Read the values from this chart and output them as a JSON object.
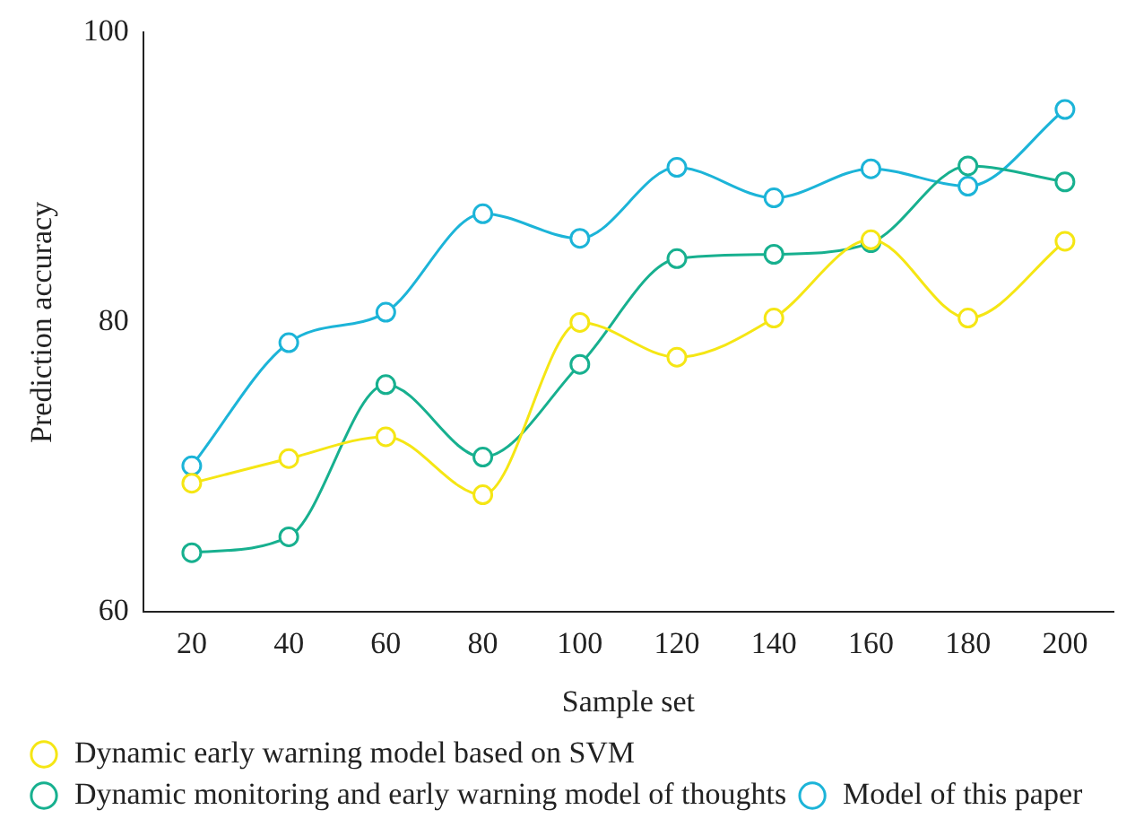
{
  "chart_data": {
    "type": "line",
    "xlabel": "Sample set",
    "ylabel": "Prediction accuracy",
    "categories": [
      "20",
      "40",
      "60",
      "80",
      "100",
      "120",
      "140",
      "160",
      "180",
      "200"
    ],
    "series": [
      {
        "name": "Dynamic early warning model based on SVM",
        "color": "#f5e614",
        "values": [
          68.9,
          70.6,
          72.1,
          68.1,
          80.0,
          77.6,
          80.3,
          85.7,
          80.3,
          85.6
        ]
      },
      {
        "name": "Dynamic monitoring and early warning model of thoughts",
        "color": "#17b08f",
        "values": [
          64.1,
          65.2,
          75.7,
          70.7,
          77.1,
          84.4,
          84.7,
          85.5,
          90.8,
          89.7
        ]
      },
      {
        "name": "Model of this paper",
        "color": "#1cb4d8",
        "values": [
          70.1,
          78.6,
          80.7,
          87.5,
          85.8,
          90.7,
          88.6,
          90.6,
          89.4,
          94.7
        ]
      }
    ],
    "ylim": [
      60,
      100
    ],
    "yticks": [
      60,
      80,
      100
    ],
    "grid": false,
    "legend": "bottom left",
    "marker": "circle",
    "line_style": "solid"
  }
}
